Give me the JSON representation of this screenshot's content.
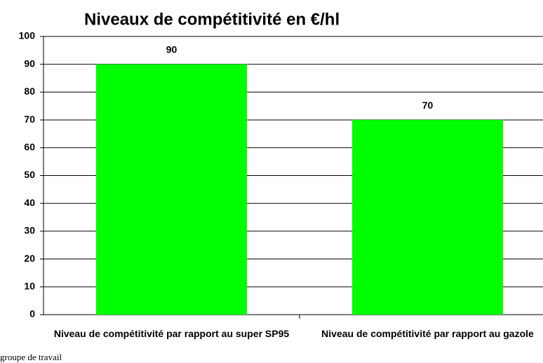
{
  "chart_data": {
    "type": "bar",
    "title": "Niveaux de compétitivité en €/hl",
    "categories": [
      "Niveau de compétitivité par rapport au super SP95",
      "Niveau de compétitivité par rapport au gazole"
    ],
    "values": [
      90,
      70
    ],
    "color": "#00ff00",
    "ylim": [
      0,
      100
    ],
    "yticks": [
      0,
      10,
      20,
      30,
      40,
      50,
      60,
      70,
      80,
      90,
      100
    ],
    "grid": true,
    "note": "groupe de travail"
  }
}
